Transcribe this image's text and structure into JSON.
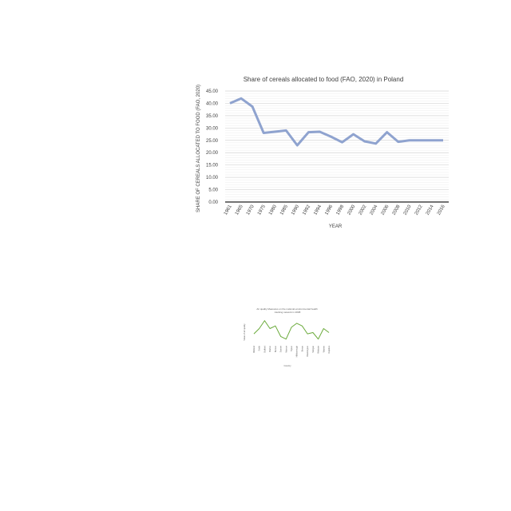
{
  "chart_data": [
    {
      "type": "line",
      "title": "Share of cereals allocated to food (FAO, 2020)  in Poland",
      "xlabel": "YEAR",
      "ylabel": "SHARE OF CEREALS ALLOCATED TO FOOD (FAO, 2020)",
      "ylim": [
        0,
        45
      ],
      "yticks": [
        "0.00",
        "5.00",
        "10.00",
        "15.00",
        "20.00",
        "25.00",
        "30.00",
        "35.00",
        "40.00",
        "45.00"
      ],
      "grid": true,
      "line_color": "#8fa3cf",
      "categories": [
        "1961",
        "1965",
        "1970",
        "1975",
        "1980",
        "1985",
        "1990",
        "1992",
        "1994",
        "1996",
        "1998",
        "2000",
        "2002",
        "2004",
        "2006",
        "2008",
        "2010",
        "2012",
        "2014",
        "2016"
      ],
      "values": [
        40.0,
        42.0,
        38.7,
        28.0,
        28.5,
        29.0,
        23.0,
        28.3,
        28.5,
        26.5,
        24.2,
        27.5,
        24.6,
        23.7,
        28.3,
        24.4,
        25.0,
        25.0,
        25.0,
        25.0
      ]
    },
    {
      "type": "line",
      "title": "Air quality Measures on the national environmental health tracking network in 2008",
      "xlabel": "Country",
      "ylabel": "Value of air quality",
      "line_color": "#6aaa3a",
      "categories": [
        "Midland",
        "Smith",
        "Stafford",
        "Marion",
        "Benton",
        "Sumter",
        "Monroe",
        "Tipton",
        "Hillsborough",
        "Brown",
        "Washington",
        "Morgan",
        "Webster",
        "Warren",
        "Rapides"
      ],
      "values": [
        3,
        5,
        8,
        5,
        6,
        2,
        1,
        5.5,
        7,
        6,
        3,
        3.5,
        1,
        5,
        3.5
      ]
    }
  ]
}
